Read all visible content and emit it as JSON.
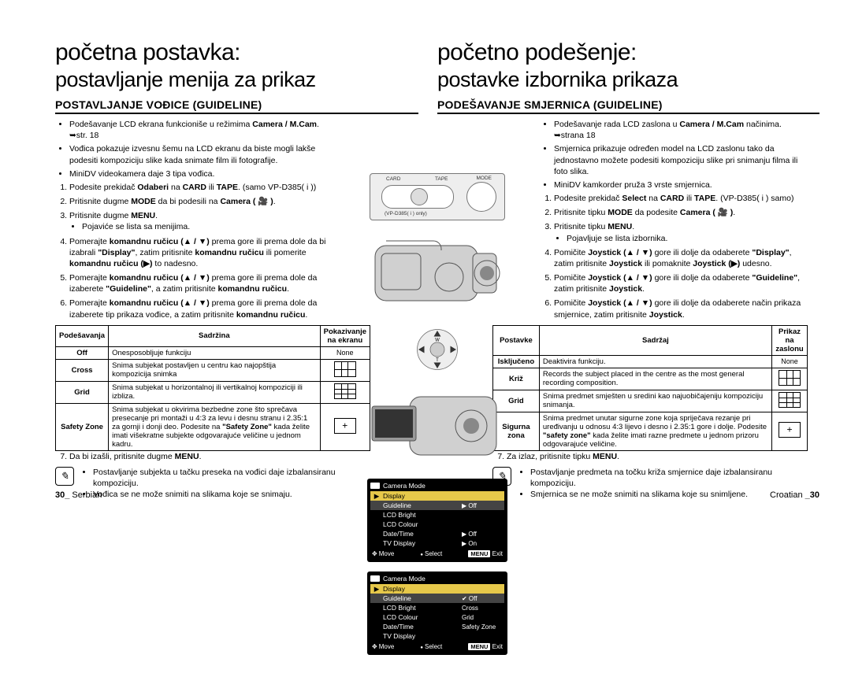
{
  "left": {
    "h1": "početna postavka:",
    "h2": "postavljanje menija za prikaz",
    "section": "POSTAVLJANJE VOĐICE (GUIDELINE)",
    "intro": [
      "Podešavanje LCD ekrana funkcioniše u režimima <b>Camera / M.Cam</b>. ➥str. 18",
      "Vođica pokazuje izvesnu šemu na LCD ekranu da biste mogli lakše podesiti kompoziciju slike kada snimate film ili fotografije.",
      "MiniDV videokamera daje 3 tipa vođica."
    ],
    "steps": [
      "Podesite prekidač <b>Odaberi</b> na <b>CARD</b> ili <b>TAPE</b>. (samo VP-D385( i ))",
      "Pritisnite dugme <b>MODE</b> da bi podesili na <b>Camera ( 🎥 )</b>.",
      "Pritisnite dugme <b>MENU</b>.<ul><li>Pojaviće se lista sa menijima.</li></ul>",
      "Pomerajte <b>komandnu ručicu (▲ / ▼)</b> prema gore ili prema dole da bi izabrali <b>&quot;Display&quot;</b>, zatim pritisnite <b>komandnu ručicu</b> ili pomerite <b>komandnu ručicu (▶)</b> to nadesno.",
      "Pomerajte <b>komandnu ručicu (▲ / ▼)</b> prema gore ili prema dole da izaberete <b>&quot;Guideline&quot;</b>, a zatim pritisnite <b>komandnu ručicu</b>.",
      "Pomerajte <b>komandnu ručicu (▲ / ▼)</b> prema gore ili prema dole da izaberete tip prikaza vođice, a zatim pritisnite <b>komandnu ručicu</b>."
    ],
    "table": {
      "headers": [
        "Podešavanja",
        "Sadržina",
        "Pokazivanje na ekranu"
      ],
      "rows": [
        {
          "k": "Off",
          "v": "Onesposobljuje funkciju",
          "icon": "none",
          "iconLabel": "None"
        },
        {
          "k": "Cross",
          "v": "Snima subjekat postavljen u centru kao najopštija kompozicija snimka",
          "icon": "grid3"
        },
        {
          "k": "Grid",
          "v": "Snima subjekat u horizontalnoj ili vertikalnoj kompoziciji ili izbliza.",
          "icon": "grid9"
        },
        {
          "k": "Safety Zone",
          "v": "Snima subjekat u okvirima bezbedne zone što sprečava presecanje pri montaži u 4:3 za levu i desnu stranu i 2.35:1 za gornji i donji deo. Podesite na <b>&quot;Safety Zone&quot;</b> kada želite imati višekratne subjekte odgovarajuće veličine u jednom kadru.",
          "icon": "safe"
        }
      ]
    },
    "step7": "Da bi izašli, pritisnite dugme <b>MENU</b>.",
    "notes": [
      "Postavljanje subjekta u tačku preseka na vođici daje izbalansiranu kompoziciju.",
      "Vođica se ne može snimiti na slikama koje se snimaju."
    ],
    "foot_num": "30_",
    "foot_lang": "Serbian"
  },
  "right": {
    "h1": "početno podešenje:",
    "h2": "postavke izbornika prikaza",
    "section": "PODEŠAVANJE SMJERNICA (GUIDELINE)",
    "intro": [
      "Podešavanje rada LCD zaslona u <b>Camera / M.Cam</b> načinima. ➥strana 18",
      "Smjernica prikazuje određen model na LCD zaslonu tako da jednostavno možete podesiti kompoziciju slike pri snimanju filma ili foto slika.",
      "MiniDV kamkorder pruža 3 vrste smjernica."
    ],
    "steps": [
      "Podesite prekidač <b>Select</b> na <b>CARD</b> ili <b>TAPE</b>. (VP-D385( i ) samo)",
      "Pritisnite tipku <b>MODE</b> da podesite <b>Camera ( 🎥 )</b>.",
      "Pritisnite tipku <b>MENU</b>.<ul><li>Pojavljuje se lista izbornika.</li></ul>",
      "Pomičite <b>Joystick (▲ / ▼)</b> gore ili dolje da odaberete <b>&quot;Display&quot;</b>, zatim pritisnite <b>Joystick</b> ili pomaknite <b>Joystick (▶)</b> udesno.",
      "Pomičite <b>Joystick (▲ / ▼)</b> gore ili dolje da odaberete <b>&quot;Guideline&quot;</b>, zatim pritisnite <b>Joystick</b>.",
      "Pomičite <b>Joystick (▲ / ▼)</b> gore ili dolje da odaberete način prikaza smjernice, zatim pritisnite <b>Joystick</b>."
    ],
    "table": {
      "headers": [
        "Postavke",
        "Sadržaj",
        "Prikaz na zaslonu"
      ],
      "rows": [
        {
          "k": "Isključeno",
          "v": "Deaktivira funkciju.",
          "icon": "none",
          "iconLabel": "None"
        },
        {
          "k": "Križ",
          "v": "Records the subject placed in the centre as the most general recording composition.",
          "icon": "grid3"
        },
        {
          "k": "Grid",
          "v": "Snima predmet smješten u sredini kao najuobičajeniju kompoziciju snimanja.",
          "icon": "grid9"
        },
        {
          "k": "Sigurna zona",
          "v": "Snima predmet unutar sigurne zone koja spriječava rezanje pri uređivanju u odnosu 4:3 lijevo i desno i 2.35:1 gore i dolje. Podesite <b>&quot;safety zone&quot;</b> kada želite imati razne predmete u jednom prizoru odgovarajuće veličine.",
          "icon": "safe"
        }
      ]
    },
    "step7": "Za izlaz, pritisnite tipku <b>MENU</b>.",
    "notes": [
      "Postavljanje predmeta na točku križa smjernice daje izbalansiranu kompoziciju.",
      "Smjernica se ne može snimiti na slikama koje su snimljene."
    ],
    "foot_lang": "Croatian",
    "foot_num": "_30"
  },
  "center": {
    "top_labels": {
      "card": "CARD",
      "tape": "TAPE",
      "mode": "MODE"
    },
    "top_note": "(VP-D385( i ) only)",
    "joy": {
      "w": "W",
      "t": "T"
    },
    "lcd1": {
      "title": "Camera Mode",
      "rows": [
        {
          "pick": "▶",
          "lbl": "Display",
          "hi": true
        },
        {
          "lbl": "Guideline",
          "sel": true,
          "val": "▶ Off"
        },
        {
          "lbl": "LCD Bright"
        },
        {
          "lbl": "LCD Colour"
        },
        {
          "lbl": "Date/Time",
          "val": "▶ Off"
        },
        {
          "lbl": "TV Display",
          "val": "▶ On"
        }
      ],
      "move": "Move",
      "select": "Select",
      "menu": "MENU",
      "exit": "Exit"
    },
    "lcd2": {
      "title": "Camera Mode",
      "rows": [
        {
          "pick": "▶",
          "lbl": "Display",
          "hi": true
        },
        {
          "lbl": "Guideline",
          "sel": true,
          "val": "✔ Off"
        },
        {
          "lbl": "LCD Bright",
          "val": "Cross"
        },
        {
          "lbl": "LCD Colour",
          "val": "Grid"
        },
        {
          "lbl": "Date/Time",
          "val": "Safety Zone"
        },
        {
          "lbl": "TV Display"
        }
      ],
      "move": "Move",
      "select": "Select",
      "menu": "MENU",
      "exit": "Exit"
    }
  }
}
